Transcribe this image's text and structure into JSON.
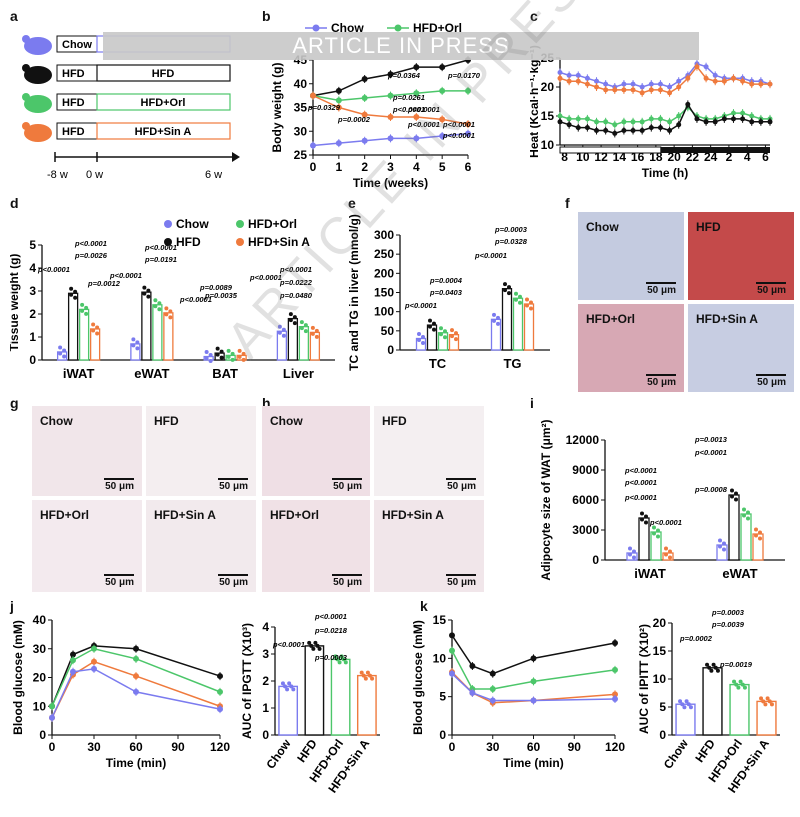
{
  "banner": "ARTICLE IN PRESS",
  "watermark": "ARTICLE IN PRESS",
  "panel_letters": [
    "a",
    "b",
    "c",
    "d",
    "e",
    "f",
    "g",
    "h",
    "i",
    "j",
    "k"
  ],
  "colors": {
    "chow": "#7b7bef",
    "hfd": "#111111",
    "orl": "#4cc66a",
    "sin": "#ef7a3d"
  },
  "panel_a": {
    "rows": [
      {
        "pre": "Chow",
        "main": ""
      },
      {
        "pre": "HFD",
        "main": "HFD"
      },
      {
        "pre": "HFD",
        "main": "HFD+Orl"
      },
      {
        "pre": "HFD",
        "main": "HFD+Sin A"
      }
    ],
    "timeline": [
      "-8 w",
      "0 w",
      "6 w"
    ]
  },
  "legend_top": [
    "Chow",
    "HFD+Orl"
  ],
  "legend_d": [
    "Chow",
    "HFD+Orl",
    "HFD",
    "HFD+Sin A"
  ],
  "chart_data": [
    {
      "id": "b",
      "type": "line",
      "title": "",
      "xlabel": "Time (weeks)",
      "ylabel": "Body weight (g)",
      "ylim": [
        25,
        45
      ],
      "yticks": [
        "25",
        "30",
        "35",
        "40",
        "45"
      ],
      "x": [
        0,
        1,
        2,
        3,
        4,
        5,
        6
      ],
      "series": [
        {
          "name": "HFD",
          "values": [
            37.5,
            38.5,
            41,
            42,
            43.5,
            43.5,
            45
          ]
        },
        {
          "name": "HFD+Orl",
          "values": [
            37.5,
            36.5,
            37,
            37.5,
            38,
            38.5,
            38.5
          ]
        },
        {
          "name": "HFD+Sin A",
          "values": [
            37.5,
            35,
            33.5,
            33,
            33,
            32.5,
            31.5
          ]
        },
        {
          "name": "Chow",
          "values": [
            27,
            27.5,
            28,
            28.5,
            28.5,
            29,
            29.5
          ]
        }
      ],
      "annotations": [
        "p=0.0364",
        "p=0.0170",
        "p=0.0261",
        "p=0.0329",
        "p<0.0001",
        "p=0.0002",
        "p<0.0001",
        "p<0.0001",
        "p<0.0001",
        "p<0.0001"
      ]
    },
    {
      "id": "c",
      "type": "line",
      "xlabel": "Time (h)",
      "ylabel": "Heat (Kcal·h⁻¹·kg⁻¹)",
      "ylim": [
        10,
        25
      ],
      "yticks": [
        "10",
        "15",
        "20",
        "25"
      ],
      "xticks": [
        "8",
        "10",
        "12",
        "14",
        "16",
        "18",
        "20",
        "22",
        "24",
        "2",
        "4",
        "6"
      ],
      "series": [
        {
          "name": "Chow",
          "values": [
            22.5,
            22,
            22,
            21.5,
            21,
            20.5,
            20,
            20.5,
            20.5,
            20,
            20.5,
            20.5,
            20,
            21,
            22,
            24,
            23.5,
            22,
            21.5,
            21.5,
            21.5,
            21,
            21,
            20.5
          ]
        },
        {
          "name": "HFD+Sin A",
          "values": [
            21.5,
            21,
            21,
            20.5,
            20,
            19.5,
            19.5,
            19.5,
            19.5,
            19,
            19.5,
            19.5,
            19,
            20,
            21.5,
            23.5,
            21.5,
            21,
            21,
            21.5,
            21,
            20.5,
            20.5,
            20.5
          ]
        },
        {
          "name": "HFD+Orl",
          "values": [
            15,
            14.5,
            14.5,
            14.5,
            14,
            14,
            13.5,
            14,
            14,
            14,
            14.5,
            14.5,
            14,
            15,
            16.5,
            15,
            14.5,
            14.5,
            15,
            15.5,
            15.5,
            15,
            14.5,
            14.5
          ]
        },
        {
          "name": "HFD",
          "values": [
            14,
            13.5,
            13,
            13,
            12.5,
            12.5,
            12,
            12.5,
            12.5,
            12.5,
            13,
            13,
            12.5,
            13.5,
            17,
            14.5,
            14,
            14,
            14.5,
            14.5,
            14.5,
            14,
            14,
            14
          ]
        }
      ]
    },
    {
      "id": "d",
      "type": "bar",
      "ylabel": "Tissue weight (g)",
      "ylim": [
        0,
        5
      ],
      "yticks": [
        "0",
        "1",
        "2",
        "3",
        "4",
        "5"
      ],
      "categories": [
        "iWAT",
        "eWAT",
        "BAT",
        "Liver"
      ],
      "series": [
        {
          "name": "Chow",
          "values": [
            0.35,
            0.7,
            0.15,
            1.25
          ]
        },
        {
          "name": "HFD",
          "values": [
            2.9,
            2.95,
            0.3,
            1.8
          ]
        },
        {
          "name": "HFD+Orl",
          "values": [
            2.2,
            2.4,
            0.2,
            1.45
          ]
        },
        {
          "name": "HFD+Sin A",
          "values": [
            1.35,
            2.05,
            0.2,
            1.2
          ]
        }
      ],
      "annotations": [
        "p<0.0001",
        "p<0.0001",
        "p=0.0026",
        "p=0.0012",
        "p<0.0001",
        "p<0.0001",
        "p=0.0191",
        "p=0.0089",
        "p<0.0001",
        "p=0.0035",
        "p<0.0001",
        "p<0.0001",
        "p=0.0222",
        "p=0.0480"
      ]
    },
    {
      "id": "e",
      "type": "bar",
      "ylabel": "TC and TG in liver (mmol/g)",
      "ylim": [
        0,
        300
      ],
      "yticks": [
        "0",
        "50",
        "100",
        "150",
        "200",
        "250",
        "300"
      ],
      "categories": [
        "TC",
        "TG"
      ],
      "series": [
        {
          "name": "Chow",
          "values": [
            30,
            80
          ]
        },
        {
          "name": "HFD",
          "values": [
            65,
            160
          ]
        },
        {
          "name": "HFD+Orl",
          "values": [
            45,
            135
          ]
        },
        {
          "name": "HFD+Sin A",
          "values": [
            40,
            120
          ]
        }
      ],
      "annotations": [
        "p=0.0004",
        "p=0.0403",
        "p<0.0001",
        "p=0.0003",
        "p=0.0328",
        "p<0.0001"
      ]
    },
    {
      "id": "i",
      "type": "bar",
      "ylabel": "Adipocyte size of WAT (μm²)",
      "ylim": [
        0,
        12000
      ],
      "yticks": [
        "0",
        "3000",
        "6000",
        "9000",
        "12000"
      ],
      "categories": [
        "iWAT",
        "eWAT"
      ],
      "series": [
        {
          "name": "Chow",
          "values": [
            700,
            1500
          ]
        },
        {
          "name": "HFD",
          "values": [
            4200,
            6500
          ]
        },
        {
          "name": "HFD+Orl",
          "values": [
            2800,
            4600
          ]
        },
        {
          "name": "HFD+Sin A",
          "values": [
            700,
            2600
          ]
        }
      ],
      "annotations": [
        "p<0.0001",
        "p<0.0001",
        "p<0.0001",
        "p<0.0001",
        "p<0.0001",
        "p=0.0013",
        "p=0.0008"
      ]
    },
    {
      "id": "j-line",
      "type": "line",
      "xlabel": "Time (min)",
      "ylabel": "Blood glucose (mM)",
      "ylim": [
        0,
        40
      ],
      "yticks": [
        "0",
        "10",
        "20",
        "30",
        "40"
      ],
      "xticks": [
        "0",
        "30",
        "60",
        "90",
        "120"
      ],
      "x": [
        0,
        15,
        30,
        60,
        120
      ],
      "series": [
        {
          "name": "HFD",
          "values": [
            10,
            28,
            31,
            30,
            20.5
          ]
        },
        {
          "name": "HFD+Orl",
          "values": [
            10,
            26,
            30,
            26.5,
            15
          ]
        },
        {
          "name": "HFD+Sin A",
          "values": [
            6,
            21,
            25.5,
            20.5,
            10
          ]
        },
        {
          "name": "Chow",
          "values": [
            6,
            22,
            23,
            15,
            9
          ]
        }
      ]
    },
    {
      "id": "j-auc",
      "type": "bar",
      "ylabel": "AUC of IPGTT (X10³)",
      "ylim": [
        0,
        4
      ],
      "yticks": [
        "0",
        "1",
        "2",
        "3",
        "4"
      ],
      "categories": [
        "Chow",
        "HFD",
        "HFD+Orl",
        "HFD+Sin A"
      ],
      "values": [
        1.8,
        3.3,
        2.8,
        2.2
      ],
      "annotations": [
        "p<0.0001",
        "p<0.0001",
        "p=0.0218",
        "p=0.0003"
      ]
    },
    {
      "id": "k-line",
      "type": "line",
      "xlabel": "Time (min)",
      "ylabel": "Blood glucose (mM)",
      "ylim": [
        0,
        15
      ],
      "yticks": [
        "0",
        "5",
        "10",
        "15"
      ],
      "xticks": [
        "0",
        "30",
        "60",
        "90",
        "120"
      ],
      "x": [
        0,
        15,
        30,
        60,
        120
      ],
      "series": [
        {
          "name": "HFD",
          "values": [
            13,
            9,
            8,
            10,
            12
          ]
        },
        {
          "name": "HFD+Orl",
          "values": [
            11,
            6,
            6,
            7,
            8.5
          ]
        },
        {
          "name": "HFD+Sin A",
          "values": [
            8.2,
            5.5,
            4.2,
            4.5,
            5.3
          ]
        },
        {
          "name": "Chow",
          "values": [
            8,
            5.5,
            4.5,
            4.5,
            4.7
          ]
        }
      ]
    },
    {
      "id": "k-auc",
      "type": "bar",
      "ylabel": "AUC of IPITT (X10²)",
      "ylim": [
        0,
        20
      ],
      "yticks": [
        "0",
        "5",
        "10",
        "15",
        "20"
      ],
      "categories": [
        "Chow",
        "HFD",
        "HFD+Orl",
        "HFD+Sin A"
      ],
      "values": [
        5.5,
        12,
        9,
        6
      ],
      "annotations": [
        "p=0.0003",
        "p=0.0002",
        "p=0.0039",
        "p=0.0019"
      ]
    }
  ],
  "panel_f": {
    "labels": [
      "Chow",
      "HFD",
      "HFD+Orl",
      "HFD+Sin A"
    ],
    "scale": "50 μm"
  },
  "panel_g": {
    "labels": [
      "Chow",
      "HFD",
      "HFD+Orl",
      "HFD+Sin A"
    ],
    "scale": "50 μm"
  },
  "panel_h": {
    "labels": [
      "Chow",
      "HFD",
      "HFD+Orl",
      "HFD+Sin A"
    ],
    "scale": "50 μm"
  }
}
